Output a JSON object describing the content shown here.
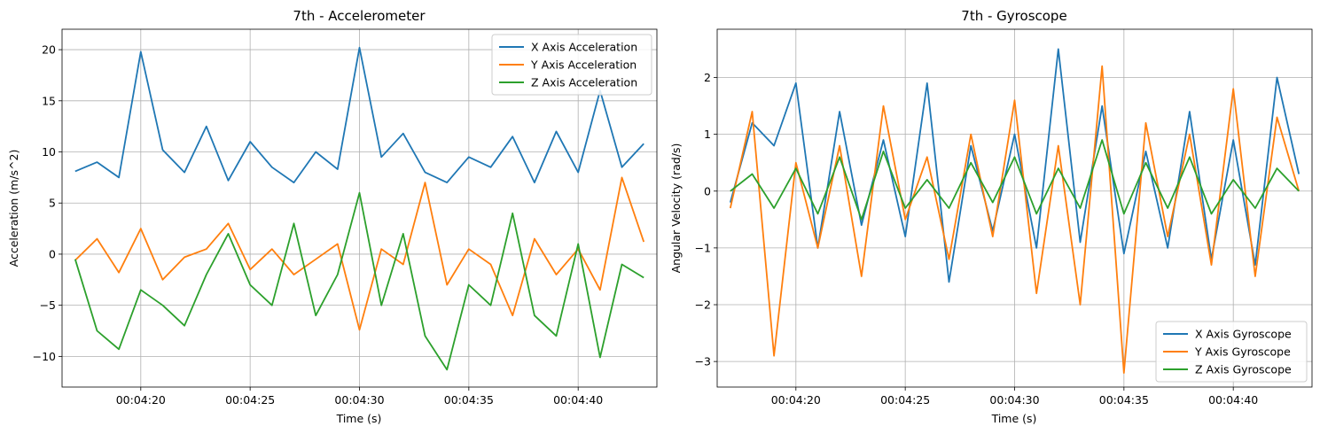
{
  "chart_data": [
    {
      "type": "line",
      "title": "7th - Accelerometer",
      "xlabel": "Time (s)",
      "ylabel": "Acceleration (m/s^2)",
      "x_range": [
        "00:04:17",
        "00:04:43"
      ],
      "xlim": [
        "00:04:16.4",
        "00:04:43.6"
      ],
      "ylim": [
        -13.0,
        22.0
      ],
      "xticks": [
        "00:04:20",
        "00:04:25",
        "00:04:30",
        "00:04:35",
        "00:04:40"
      ],
      "yticks": [
        -10,
        -5,
        0,
        5,
        10,
        15,
        20
      ],
      "grid": true,
      "legend_position": "upper right",
      "series": [
        {
          "name": "X Axis Acceleration",
          "color": "#1f77b4",
          "x": [
            "00:04:17",
            "00:04:18",
            "00:04:19",
            "00:04:20",
            "00:04:21",
            "00:04:22",
            "00:04:23",
            "00:04:24",
            "00:04:25",
            "00:04:26",
            "00:04:27",
            "00:04:28",
            "00:04:29",
            "00:04:30",
            "00:04:31",
            "00:04:32",
            "00:04:33",
            "00:04:34",
            "00:04:35",
            "00:04:36",
            "00:04:37",
            "00:04:38",
            "00:04:39",
            "00:04:40",
            "00:04:41",
            "00:04:42",
            "00:04:43"
          ],
          "values": [
            8.1,
            9.0,
            7.5,
            19.8,
            10.2,
            8.0,
            12.5,
            7.2,
            11.0,
            8.5,
            7.0,
            10.0,
            8.3,
            20.2,
            9.5,
            11.8,
            8.0,
            7.0,
            9.5,
            8.5,
            11.5,
            7.0,
            12.0,
            8.0,
            16.0,
            8.5,
            10.8
          ]
        },
        {
          "name": "Y Axis Acceleration",
          "color": "#ff7f0e",
          "x": [
            "00:04:17",
            "00:04:18",
            "00:04:19",
            "00:04:20",
            "00:04:21",
            "00:04:22",
            "00:04:23",
            "00:04:24",
            "00:04:25",
            "00:04:26",
            "00:04:27",
            "00:04:28",
            "00:04:29",
            "00:04:30",
            "00:04:31",
            "00:04:32",
            "00:04:33",
            "00:04:34",
            "00:04:35",
            "00:04:36",
            "00:04:37",
            "00:04:38",
            "00:04:39",
            "00:04:40",
            "00:04:41",
            "00:04:42",
            "00:04:43"
          ],
          "values": [
            -0.6,
            1.5,
            -1.8,
            2.5,
            -2.5,
            -0.3,
            0.5,
            3.0,
            -1.5,
            0.5,
            -2.0,
            -0.5,
            1.0,
            -7.4,
            0.5,
            -1.0,
            7.0,
            -3.0,
            0.5,
            -1.0,
            -6.0,
            1.5,
            -2.0,
            0.5,
            -3.5,
            7.5,
            1.2
          ]
        },
        {
          "name": "Z Axis Acceleration",
          "color": "#2ca02c",
          "x": [
            "00:04:17",
            "00:04:18",
            "00:04:19",
            "00:04:20",
            "00:04:21",
            "00:04:22",
            "00:04:23",
            "00:04:24",
            "00:04:25",
            "00:04:26",
            "00:04:27",
            "00:04:28",
            "00:04:29",
            "00:04:30",
            "00:04:31",
            "00:04:32",
            "00:04:33",
            "00:04:34",
            "00:04:35",
            "00:04:36",
            "00:04:37",
            "00:04:38",
            "00:04:39",
            "00:04:40",
            "00:04:41",
            "00:04:42",
            "00:04:43"
          ],
          "values": [
            -0.5,
            -7.5,
            -9.3,
            -3.5,
            -5.0,
            -7.0,
            -2.0,
            2.0,
            -3.0,
            -5.0,
            3.0,
            -6.0,
            -2.0,
            6.0,
            -5.0,
            2.0,
            -8.0,
            -11.3,
            -3.0,
            -5.0,
            4.0,
            -6.0,
            -8.0,
            1.0,
            -10.1,
            -1.0,
            -2.3
          ]
        }
      ]
    },
    {
      "type": "line",
      "title": "7th - Gyroscope",
      "xlabel": "Time (s)",
      "ylabel": "Angular Velocity (rad/s)",
      "x_range": [
        "00:04:17",
        "00:04:43"
      ],
      "xlim": [
        "00:04:16.4",
        "00:04:43.6"
      ],
      "ylim": [
        -3.45,
        2.85
      ],
      "xticks": [
        "00:04:20",
        "00:04:25",
        "00:04:30",
        "00:04:35",
        "00:04:40"
      ],
      "yticks": [
        -3,
        -2,
        -1,
        0,
        1,
        2
      ],
      "grid": true,
      "legend_position": "lower right",
      "series": [
        {
          "name": "X Axis Gyroscope",
          "color": "#1f77b4",
          "x": [
            "00:04:17",
            "00:04:18",
            "00:04:19",
            "00:04:20",
            "00:04:21",
            "00:04:22",
            "00:04:23",
            "00:04:24",
            "00:04:25",
            "00:04:26",
            "00:04:27",
            "00:04:28",
            "00:04:29",
            "00:04:30",
            "00:04:31",
            "00:04:32",
            "00:04:33",
            "00:04:34",
            "00:04:35",
            "00:04:36",
            "00:04:37",
            "00:04:38",
            "00:04:39",
            "00:04:40",
            "00:04:41",
            "00:04:42",
            "00:04:43"
          ],
          "values": [
            -0.2,
            1.2,
            0.8,
            1.9,
            -1.0,
            1.4,
            -0.6,
            0.9,
            -0.8,
            1.9,
            -1.6,
            0.8,
            -0.7,
            1.0,
            -1.0,
            2.5,
            -0.9,
            1.5,
            -1.1,
            0.7,
            -1.0,
            1.4,
            -1.2,
            0.9,
            -1.3,
            2.0,
            0.3
          ]
        },
        {
          "name": "Y Axis Gyroscope",
          "color": "#ff7f0e",
          "x": [
            "00:04:17",
            "00:04:18",
            "00:04:19",
            "00:04:20",
            "00:04:21",
            "00:04:22",
            "00:04:23",
            "00:04:24",
            "00:04:25",
            "00:04:26",
            "00:04:27",
            "00:04:28",
            "00:04:29",
            "00:04:30",
            "00:04:31",
            "00:04:32",
            "00:04:33",
            "00:04:34",
            "00:04:35",
            "00:04:36",
            "00:04:37",
            "00:04:38",
            "00:04:39",
            "00:04:40",
            "00:04:41",
            "00:04:42",
            "00:04:43"
          ],
          "values": [
            -0.3,
            1.4,
            -2.9,
            0.5,
            -1.0,
            0.8,
            -1.5,
            1.5,
            -0.5,
            0.6,
            -1.2,
            1.0,
            -0.8,
            1.6,
            -1.8,
            0.8,
            -2.0,
            2.2,
            -3.2,
            1.2,
            -0.8,
            1.0,
            -1.3,
            1.8,
            -1.5,
            1.3,
            0.0
          ]
        },
        {
          "name": "Z Axis Gyroscope",
          "color": "#2ca02c",
          "x": [
            "00:04:17",
            "00:04:18",
            "00:04:19",
            "00:04:20",
            "00:04:21",
            "00:04:22",
            "00:04:23",
            "00:04:24",
            "00:04:25",
            "00:04:26",
            "00:04:27",
            "00:04:28",
            "00:04:29",
            "00:04:30",
            "00:04:31",
            "00:04:32",
            "00:04:33",
            "00:04:34",
            "00:04:35",
            "00:04:36",
            "00:04:37",
            "00:04:38",
            "00:04:39",
            "00:04:40",
            "00:04:41",
            "00:04:42",
            "00:04:43"
          ],
          "values": [
            0.0,
            0.3,
            -0.3,
            0.4,
            -0.4,
            0.6,
            -0.5,
            0.7,
            -0.3,
            0.2,
            -0.3,
            0.5,
            -0.2,
            0.6,
            -0.4,
            0.4,
            -0.3,
            0.9,
            -0.4,
            0.5,
            -0.3,
            0.6,
            -0.4,
            0.2,
            -0.3,
            0.4,
            0.0
          ]
        }
      ]
    }
  ]
}
